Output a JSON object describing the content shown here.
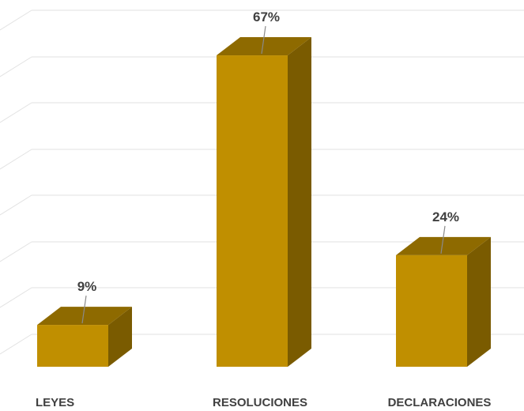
{
  "chart_data": {
    "type": "bar",
    "style": "3d-column",
    "categories": [
      "LEYES",
      "RESOLUCIONES",
      "DECLARACIONES"
    ],
    "values": [
      9,
      67,
      24
    ],
    "data_labels": [
      "9%",
      "67%",
      "24%"
    ],
    "ylim": [
      0,
      75
    ],
    "grid": true,
    "legend": "none",
    "colors": {
      "front": "#c08f00",
      "top": "#8e6a00",
      "side": "#7a5b00",
      "grid": "#e2e2e2",
      "text": "#404040"
    }
  }
}
